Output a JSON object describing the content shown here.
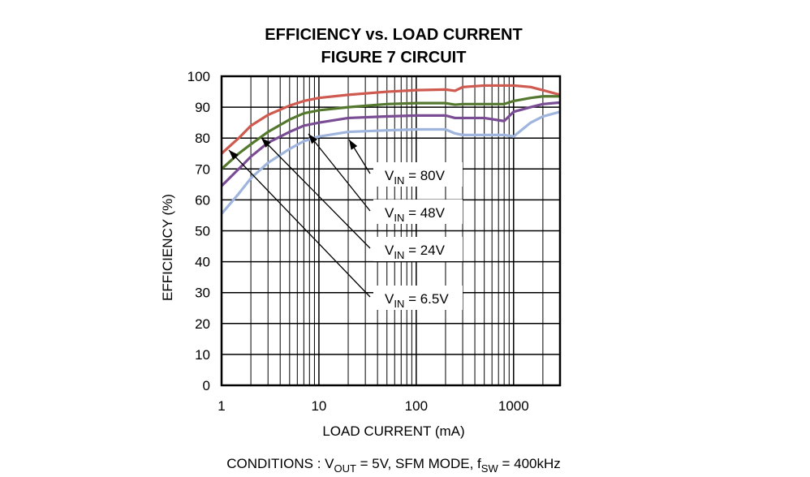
{
  "chart_data": {
    "type": "line",
    "title": "EFFICIENCY vs. LOAD CURRENT",
    "subtitle": "FIGURE 7 CIRCUIT",
    "x_label": "LOAD CURRENT (mA)",
    "y_label": "EFFICIENCY (%)",
    "xscale": "log",
    "grid": true,
    "x_minor_grid": true,
    "xlim": [
      1,
      3000
    ],
    "ylim": [
      0,
      100
    ],
    "xticks": [
      1,
      10,
      100,
      1000
    ],
    "yticks": [
      0,
      10,
      20,
      30,
      40,
      50,
      60,
      70,
      80,
      90,
      100
    ],
    "x": [
      1,
      1.5,
      2,
      3,
      5,
      7,
      10,
      20,
      50,
      100,
      200,
      250,
      300,
      500,
      800,
      1000,
      1500,
      2000,
      3000
    ],
    "series": [
      {
        "name": {
          "main": "V",
          "sub": "IN",
          "tail": " = 80V"
        },
        "color": "#cf5a50",
        "values": [
          75,
          80,
          84,
          87.5,
          90.5,
          92,
          93,
          94,
          95,
          95.5,
          95.7,
          95.3,
          96.5,
          97,
          97,
          97,
          96.5,
          95.5,
          94
        ]
      },
      {
        "name": {
          "main": "V",
          "sub": "IN",
          "tail": " = 48V"
        },
        "color": "#55782f",
        "values": [
          70,
          75,
          78,
          82,
          86,
          88,
          89,
          90,
          91,
          91.3,
          91.3,
          90.8,
          91,
          91,
          91,
          92,
          93,
          93.5,
          93.5
        ]
      },
      {
        "name": {
          "main": "V",
          "sub": "IN",
          "tail": " = 24V"
        },
        "color": "#7a4c93",
        "values": [
          64.5,
          70,
          74,
          78.5,
          82,
          84,
          85,
          86.5,
          87,
          87.3,
          87.3,
          86.5,
          86.5,
          86.5,
          85.5,
          88.5,
          90,
          91,
          91.5
        ]
      },
      {
        "name": {
          "main": "V",
          "sub": "IN",
          "tail": " = 6.5V"
        },
        "color": "#9fb5dd",
        "values": [
          55.5,
          62,
          67,
          72,
          76.5,
          79,
          80.5,
          82,
          82.5,
          82.8,
          82.8,
          81.5,
          81,
          81,
          81,
          80.5,
          85,
          87,
          88.5
        ]
      }
    ],
    "footnote": [
      {
        "text": "CONDITIONS : V"
      },
      {
        "text": "OUT",
        "sub": true
      },
      {
        "text": " = 5V, SFM MODE, f"
      },
      {
        "text": "SW",
        "sub": true
      },
      {
        "text": " = 400kHz"
      }
    ]
  }
}
